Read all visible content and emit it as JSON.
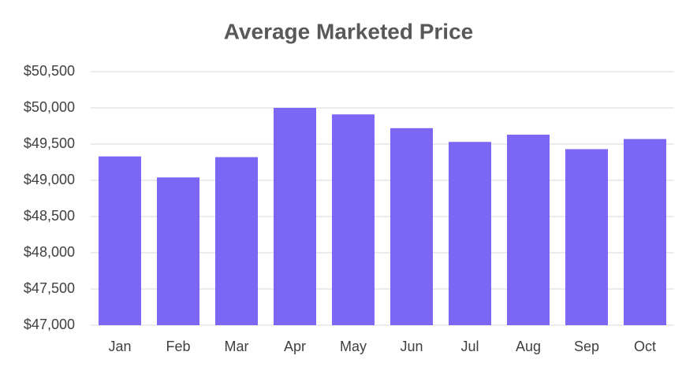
{
  "chart_data": {
    "type": "bar",
    "title": "Average Marketed Price",
    "categories": [
      "Jan",
      "Feb",
      "Mar",
      "Apr",
      "May",
      "Jun",
      "Jul",
      "Aug",
      "Sep",
      "Oct"
    ],
    "values": [
      49330,
      49040,
      49320,
      50000,
      49910,
      49720,
      49530,
      49630,
      49430,
      49570
    ],
    "color": "#7b66f5",
    "ylim": [
      47000,
      50500
    ],
    "yticks": [
      {
        "value": 47000,
        "label": "$47,000"
      },
      {
        "value": 47500,
        "label": "$47,500"
      },
      {
        "value": 48000,
        "label": "$48,000"
      },
      {
        "value": 48500,
        "label": "$48,500"
      },
      {
        "value": 49000,
        "label": "$49,000"
      },
      {
        "value": 49500,
        "label": "$49,500"
      },
      {
        "value": 50000,
        "label": "$50,000"
      },
      {
        "value": 50500,
        "label": "$50,500"
      }
    ],
    "grid": true
  }
}
